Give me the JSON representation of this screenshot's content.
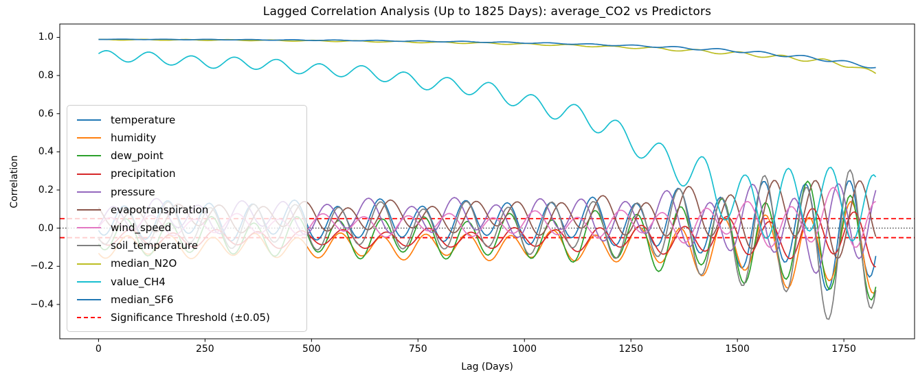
{
  "chart_data": {
    "type": "line",
    "title": "Lagged Correlation Analysis (Up to 1825 Days): average_CO2 vs Predictors",
    "xlabel": "Lag (Days)",
    "ylabel": "Correlation",
    "xlim": [
      -91,
      1916
    ],
    "ylim": [
      -0.58,
      1.07
    ],
    "x_ticks": [
      0,
      250,
      500,
      750,
      1000,
      1250,
      1500,
      1750
    ],
    "x_tick_labels": [
      "0",
      "250",
      "500",
      "750",
      "1000",
      "1250",
      "1500",
      "1750"
    ],
    "y_ticks": [
      1.0,
      0.8,
      0.6,
      0.4,
      0.2,
      0.0,
      -0.2,
      -0.4
    ],
    "y_tick_labels": [
      "1.0",
      "0.8",
      "0.6",
      "0.4",
      "0.2",
      "0.0",
      "−0.2",
      "−0.4"
    ],
    "lag_range_days": [
      0,
      1825
    ],
    "sample_step_days": 5,
    "oscillation_period_days": 100,
    "grid": false,
    "reference_lines": [
      {
        "name": "zero-line",
        "y": 0.0,
        "color": "#000000",
        "style": "dotted"
      },
      {
        "name": "significance-threshold-upper",
        "y": 0.05,
        "color": "#ff0000",
        "style": "dashed"
      },
      {
        "name": "significance-threshold-lower",
        "y": -0.05,
        "color": "#ff0000",
        "style": "dashed"
      }
    ],
    "legend": {
      "position": "upper-left-inset",
      "threshold_label": "Significance Threshold (±0.05)",
      "threshold_color": "#ff0000"
    },
    "series": [
      {
        "name": "temperature",
        "color": "#1f77b4",
        "phase_days": 36,
        "center_anchors": [
          [
            0,
            0.045
          ],
          [
            1300,
            0.035
          ],
          [
            1825,
            -0.02
          ]
        ],
        "amplitude_anchors": [
          [
            0,
            0.088
          ],
          [
            900,
            0.095
          ],
          [
            1250,
            0.115
          ],
          [
            1500,
            0.19
          ],
          [
            1825,
            0.3
          ]
        ],
        "secondary": {
          "ratio": 0.22,
          "period_days": 233,
          "phase_days": 140
        }
      },
      {
        "name": "humidity",
        "color": "#ff7f0e",
        "phase_days": 42,
        "center_anchors": [
          [
            0,
            -0.095
          ],
          [
            1300,
            -0.095
          ],
          [
            1825,
            -0.11
          ]
        ],
        "amplitude_anchors": [
          [
            0,
            0.052
          ],
          [
            900,
            0.062
          ],
          [
            1250,
            0.08
          ],
          [
            1500,
            0.15
          ],
          [
            1825,
            0.22
          ]
        ],
        "secondary": {
          "ratio": 0.22,
          "period_days": 233,
          "phase_days": 60
        }
      },
      {
        "name": "dew_point",
        "color": "#2ca02c",
        "phase_days": 40,
        "center_anchors": [
          [
            0,
            -0.045
          ],
          [
            1300,
            -0.05
          ],
          [
            1825,
            -0.055
          ]
        ],
        "amplitude_anchors": [
          [
            0,
            0.085
          ],
          [
            900,
            0.1
          ],
          [
            1250,
            0.13
          ],
          [
            1500,
            0.2
          ],
          [
            1825,
            0.3
          ]
        ],
        "secondary": {
          "ratio": 0.2,
          "period_days": 233,
          "phase_days": 200
        }
      },
      {
        "name": "precipitation",
        "color": "#d62728",
        "phase_days": 50,
        "center_anchors": [
          [
            0,
            -0.055
          ],
          [
            1300,
            -0.055
          ],
          [
            1825,
            -0.03
          ]
        ],
        "amplitude_anchors": [
          [
            0,
            0.038
          ],
          [
            900,
            0.045
          ],
          [
            1250,
            0.06
          ],
          [
            1500,
            0.09
          ],
          [
            1825,
            0.14
          ]
        ],
        "secondary": {
          "ratio": 0.25,
          "period_days": 233,
          "phase_days": 10
        }
      },
      {
        "name": "pressure",
        "color": "#9467bd",
        "phase_days": 10,
        "center_anchors": [
          [
            0,
            0.065
          ],
          [
            1300,
            0.055
          ],
          [
            1825,
            -0.01
          ]
        ],
        "amplitude_anchors": [
          [
            0,
            0.07
          ],
          [
            900,
            0.08
          ],
          [
            1250,
            0.1
          ],
          [
            1500,
            0.15
          ],
          [
            1825,
            0.23
          ]
        ],
        "secondary": {
          "ratio": 0.3,
          "period_days": 233,
          "phase_days": 90
        }
      },
      {
        "name": "evapotranspiration",
        "color": "#8c564b",
        "phase_days": 60,
        "center_anchors": [
          [
            0,
            0.055
          ],
          [
            1300,
            0.065
          ],
          [
            1825,
            0.08
          ]
        ],
        "amplitude_anchors": [
          [
            0,
            0.06
          ],
          [
            900,
            0.07
          ],
          [
            1250,
            0.09
          ],
          [
            1500,
            0.14
          ],
          [
            1825,
            0.2
          ]
        ],
        "secondary": {
          "ratio": 0.3,
          "period_days": 233,
          "phase_days": 170
        }
      },
      {
        "name": "wind_speed",
        "color": "#e377c2",
        "phase_days": 100,
        "center_anchors": [
          [
            0,
            0.015
          ],
          [
            1300,
            0.02
          ],
          [
            1825,
            0.04
          ]
        ],
        "amplitude_anchors": [
          [
            0,
            0.042
          ],
          [
            900,
            0.05
          ],
          [
            1250,
            0.06
          ],
          [
            1500,
            0.09
          ],
          [
            1825,
            0.15
          ]
        ],
        "secondary": {
          "ratio": 0.35,
          "period_days": 233,
          "phase_days": 30
        }
      },
      {
        "name": "soil_temperature",
        "color": "#7f7f7f",
        "phase_days": 38,
        "center_anchors": [
          [
            0,
            0.02
          ],
          [
            1300,
            0.0
          ],
          [
            1825,
            -0.1
          ]
        ],
        "amplitude_anchors": [
          [
            0,
            0.1
          ],
          [
            900,
            0.115
          ],
          [
            1250,
            0.14
          ],
          [
            1500,
            0.25
          ],
          [
            1825,
            0.4
          ]
        ],
        "secondary": {
          "ratio": 0.18,
          "period_days": 233,
          "phase_days": 120
        }
      },
      {
        "name": "median_N2O",
        "color": "#bcbd22",
        "phase_days": 80,
        "center_anchors": [
          [
            0,
            0.988
          ],
          [
            300,
            0.986
          ],
          [
            600,
            0.98
          ],
          [
            900,
            0.97
          ],
          [
            1100,
            0.959
          ],
          [
            1300,
            0.943
          ],
          [
            1500,
            0.916
          ],
          [
            1600,
            0.897
          ],
          [
            1700,
            0.877
          ],
          [
            1770,
            0.85
          ],
          [
            1825,
            0.807
          ]
        ],
        "amplitude_anchors": [
          [
            0,
            0.002
          ],
          [
            1200,
            0.004
          ],
          [
            1500,
            0.009
          ],
          [
            1825,
            0.012
          ]
        ]
      },
      {
        "name": "value_CH4",
        "color": "#17becf",
        "phase_days": 94,
        "center_anchors": [
          [
            0,
            0.908
          ],
          [
            150,
            0.885
          ],
          [
            300,
            0.868
          ],
          [
            450,
            0.847
          ],
          [
            600,
            0.82
          ],
          [
            750,
            0.775
          ],
          [
            900,
            0.725
          ],
          [
            1000,
            0.672
          ],
          [
            1100,
            0.605
          ],
          [
            1200,
            0.525
          ],
          [
            1300,
            0.405
          ],
          [
            1400,
            0.27
          ],
          [
            1450,
            0.19
          ],
          [
            1520,
            0.14
          ],
          [
            1825,
            0.125
          ]
        ],
        "amplitude_anchors": [
          [
            0,
            0.028
          ],
          [
            600,
            0.032
          ],
          [
            1000,
            0.045
          ],
          [
            1300,
            0.065
          ],
          [
            1450,
            0.13
          ],
          [
            1550,
            0.17
          ],
          [
            1825,
            0.18
          ]
        ],
        "secondary": {
          "ratio": 0.15,
          "period_days": 260,
          "phase_days": 50
        }
      },
      {
        "name": "median_SF6",
        "color": "#1f77b4",
        "phase_days": 30,
        "center_anchors": [
          [
            0,
            0.99
          ],
          [
            300,
            0.988
          ],
          [
            600,
            0.984
          ],
          [
            900,
            0.976
          ],
          [
            1100,
            0.967
          ],
          [
            1300,
            0.953
          ],
          [
            1500,
            0.929
          ],
          [
            1600,
            0.909
          ],
          [
            1700,
            0.886
          ],
          [
            1770,
            0.862
          ],
          [
            1825,
            0.845
          ]
        ],
        "amplitude_anchors": [
          [
            0,
            0.001
          ],
          [
            1200,
            0.003
          ],
          [
            1500,
            0.007
          ],
          [
            1825,
            0.01
          ]
        ]
      }
    ]
  }
}
